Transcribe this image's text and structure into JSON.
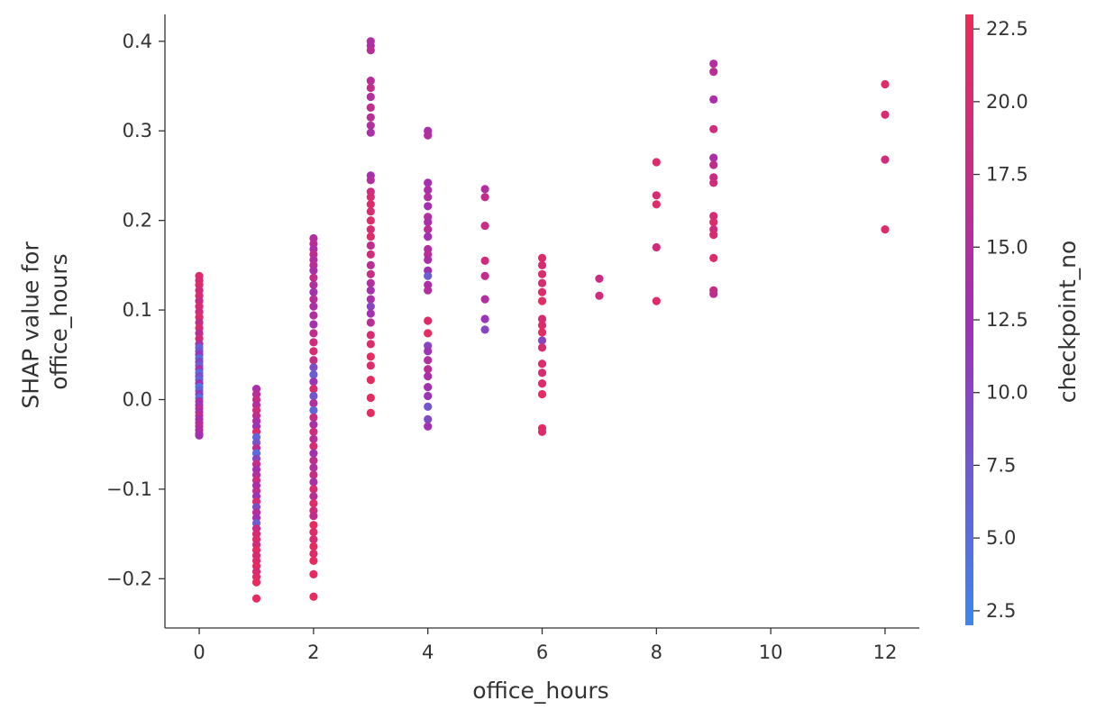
{
  "chart_data": {
    "type": "scatter",
    "title": "",
    "xlabel": "office_hours",
    "ylabel_lines": [
      "SHAP value for",
      "office_hours"
    ],
    "xlim": [
      -0.6,
      12.6
    ],
    "ylim": [
      -0.255,
      0.43
    ],
    "x_ticks": [
      0,
      2,
      4,
      6,
      8,
      10,
      12
    ],
    "x_tick_labels": [
      "0",
      "2",
      "4",
      "6",
      "8",
      "10",
      "12"
    ],
    "y_ticks": [
      -0.2,
      -0.1,
      0.0,
      0.1,
      0.2,
      0.3,
      0.4
    ],
    "y_tick_labels": [
      "−0.2",
      "−0.1",
      "0.0",
      "0.1",
      "0.2",
      "0.3",
      "0.4"
    ],
    "grid": false,
    "colorbar": {
      "label": "checkpoint_no",
      "range": [
        2,
        23
      ],
      "ticks": [
        2.5,
        5.0,
        7.5,
        10.0,
        12.5,
        15.0,
        17.5,
        20.0,
        22.5
      ],
      "tick_labels": [
        "2.5",
        "5.0",
        "7.5",
        "10.0",
        "12.5",
        "15.0",
        "17.5",
        "20.0",
        "22.5"
      ],
      "color_low": "#3b86f0",
      "color_mid": "#a12fb6",
      "color_high": "#ee2a57"
    },
    "points": [
      [
        0,
        0.138,
        21
      ],
      [
        0,
        0.133,
        20
      ],
      [
        0,
        0.128,
        21
      ],
      [
        0,
        0.122,
        19
      ],
      [
        0,
        0.116,
        20
      ],
      [
        0,
        0.11,
        18
      ],
      [
        0,
        0.104,
        20
      ],
      [
        0,
        0.098,
        19
      ],
      [
        0,
        0.092,
        21
      ],
      [
        0,
        0.086,
        17
      ],
      [
        0,
        0.08,
        20
      ],
      [
        0,
        0.074,
        16
      ],
      [
        0,
        0.068,
        19
      ],
      [
        0,
        0.062,
        15
      ],
      [
        0,
        0.058,
        6
      ],
      [
        0,
        0.054,
        8
      ],
      [
        0,
        0.05,
        12
      ],
      [
        0,
        0.046,
        5
      ],
      [
        0,
        0.042,
        10
      ],
      [
        0,
        0.038,
        7
      ],
      [
        0,
        0.034,
        14
      ],
      [
        0,
        0.03,
        5
      ],
      [
        0,
        0.026,
        9
      ],
      [
        0,
        0.022,
        6
      ],
      [
        0,
        0.018,
        13
      ],
      [
        0,
        0.014,
        4
      ],
      [
        0,
        0.01,
        7
      ],
      [
        0,
        0.006,
        11
      ],
      [
        0,
        0.002,
        5
      ],
      [
        0,
        -0.002,
        15
      ],
      [
        0,
        -0.006,
        12
      ],
      [
        0,
        -0.01,
        16
      ],
      [
        0,
        -0.014,
        14
      ],
      [
        0,
        -0.018,
        17
      ],
      [
        0,
        -0.022,
        13
      ],
      [
        0,
        -0.026,
        15
      ],
      [
        0,
        -0.03,
        16
      ],
      [
        0,
        -0.034,
        14
      ],
      [
        0,
        -0.038,
        15
      ],
      [
        0,
        -0.04,
        13
      ],
      [
        1,
        0.012,
        14
      ],
      [
        1,
        0.006,
        16
      ],
      [
        1,
        0.0,
        18
      ],
      [
        1,
        -0.006,
        15
      ],
      [
        1,
        -0.012,
        19
      ],
      [
        1,
        -0.018,
        17
      ],
      [
        1,
        -0.024,
        14
      ],
      [
        1,
        -0.03,
        12
      ],
      [
        1,
        -0.036,
        20
      ],
      [
        1,
        -0.042,
        6
      ],
      [
        1,
        -0.048,
        8
      ],
      [
        1,
        -0.054,
        16
      ],
      [
        1,
        -0.06,
        5
      ],
      [
        1,
        -0.066,
        10
      ],
      [
        1,
        -0.072,
        18
      ],
      [
        1,
        -0.078,
        13
      ],
      [
        1,
        -0.084,
        15
      ],
      [
        1,
        -0.09,
        19
      ],
      [
        1,
        -0.096,
        14
      ],
      [
        1,
        -0.102,
        17
      ],
      [
        1,
        -0.108,
        12
      ],
      [
        1,
        -0.114,
        20
      ],
      [
        1,
        -0.12,
        9
      ],
      [
        1,
        -0.126,
        16
      ],
      [
        1,
        -0.132,
        13
      ],
      [
        1,
        -0.138,
        7
      ],
      [
        1,
        -0.144,
        18
      ],
      [
        1,
        -0.15,
        20
      ],
      [
        1,
        -0.156,
        21
      ],
      [
        1,
        -0.162,
        19
      ],
      [
        1,
        -0.168,
        22
      ],
      [
        1,
        -0.174,
        20
      ],
      [
        1,
        -0.18,
        21
      ],
      [
        1,
        -0.186,
        22
      ],
      [
        1,
        -0.192,
        20
      ],
      [
        1,
        -0.198,
        21
      ],
      [
        1,
        -0.204,
        22
      ],
      [
        1,
        -0.222,
        22
      ],
      [
        2,
        0.18,
        15
      ],
      [
        2,
        0.174,
        16
      ],
      [
        2,
        0.168,
        14
      ],
      [
        2,
        0.162,
        17
      ],
      [
        2,
        0.156,
        15
      ],
      [
        2,
        0.15,
        16
      ],
      [
        2,
        0.144,
        14
      ],
      [
        2,
        0.136,
        17
      ],
      [
        2,
        0.128,
        15
      ],
      [
        2,
        0.12,
        13
      ],
      [
        2,
        0.112,
        16
      ],
      [
        2,
        0.104,
        14
      ],
      [
        2,
        0.094,
        15
      ],
      [
        2,
        0.084,
        13
      ],
      [
        2,
        0.074,
        17
      ],
      [
        2,
        0.064,
        19
      ],
      [
        2,
        0.054,
        20
      ],
      [
        2,
        0.044,
        18
      ],
      [
        2,
        0.036,
        9
      ],
      [
        2,
        0.028,
        7
      ],
      [
        2,
        0.02,
        12
      ],
      [
        2,
        0.012,
        20
      ],
      [
        2,
        0.004,
        8
      ],
      [
        2,
        -0.004,
        15
      ],
      [
        2,
        -0.012,
        6
      ],
      [
        2,
        -0.02,
        18
      ],
      [
        2,
        -0.028,
        14
      ],
      [
        2,
        -0.036,
        19
      ],
      [
        2,
        -0.044,
        16
      ],
      [
        2,
        -0.052,
        20
      ],
      [
        2,
        -0.06,
        13
      ],
      [
        2,
        -0.068,
        17
      ],
      [
        2,
        -0.076,
        15
      ],
      [
        2,
        -0.084,
        18
      ],
      [
        2,
        -0.092,
        14
      ],
      [
        2,
        -0.1,
        20
      ],
      [
        2,
        -0.108,
        16
      ],
      [
        2,
        -0.116,
        21
      ],
      [
        2,
        -0.124,
        19
      ],
      [
        2,
        -0.13,
        17
      ],
      [
        2,
        -0.14,
        22
      ],
      [
        2,
        -0.148,
        21
      ],
      [
        2,
        -0.156,
        20
      ],
      [
        2,
        -0.164,
        22
      ],
      [
        2,
        -0.172,
        21
      ],
      [
        2,
        -0.18,
        22
      ],
      [
        2,
        -0.195,
        22
      ],
      [
        2,
        -0.22,
        22
      ],
      [
        3,
        0.4,
        15
      ],
      [
        3,
        0.395,
        14
      ],
      [
        3,
        0.39,
        16
      ],
      [
        3,
        0.356,
        16
      ],
      [
        3,
        0.348,
        17
      ],
      [
        3,
        0.338,
        15
      ],
      [
        3,
        0.326,
        17
      ],
      [
        3,
        0.315,
        16
      ],
      [
        3,
        0.306,
        15
      ],
      [
        3,
        0.298,
        14
      ],
      [
        3,
        0.25,
        13
      ],
      [
        3,
        0.245,
        15
      ],
      [
        3,
        0.232,
        19
      ],
      [
        3,
        0.226,
        20
      ],
      [
        3,
        0.218,
        21
      ],
      [
        3,
        0.21,
        20
      ],
      [
        3,
        0.2,
        21
      ],
      [
        3,
        0.19,
        20
      ],
      [
        3,
        0.182,
        21
      ],
      [
        3,
        0.172,
        17
      ],
      [
        3,
        0.162,
        19
      ],
      [
        3,
        0.15,
        16
      ],
      [
        3,
        0.14,
        18
      ],
      [
        3,
        0.13,
        15
      ],
      [
        3,
        0.122,
        13
      ],
      [
        3,
        0.112,
        14
      ],
      [
        3,
        0.104,
        10
      ],
      [
        3,
        0.096,
        13
      ],
      [
        3,
        0.086,
        16
      ],
      [
        3,
        0.072,
        20
      ],
      [
        3,
        0.062,
        21
      ],
      [
        3,
        0.048,
        22
      ],
      [
        3,
        0.038,
        21
      ],
      [
        3,
        0.022,
        22
      ],
      [
        3,
        0.002,
        22
      ],
      [
        3,
        -0.015,
        22
      ],
      [
        4,
        0.3,
        14
      ],
      [
        4,
        0.295,
        15
      ],
      [
        4,
        0.242,
        13
      ],
      [
        4,
        0.234,
        14
      ],
      [
        4,
        0.226,
        15
      ],
      [
        4,
        0.216,
        13
      ],
      [
        4,
        0.204,
        15
      ],
      [
        4,
        0.198,
        14
      ],
      [
        4,
        0.19,
        16
      ],
      [
        4,
        0.182,
        13
      ],
      [
        4,
        0.168,
        15
      ],
      [
        4,
        0.162,
        16
      ],
      [
        4,
        0.156,
        14
      ],
      [
        4,
        0.144,
        13
      ],
      [
        4,
        0.138,
        7
      ],
      [
        4,
        0.128,
        14
      ],
      [
        4,
        0.122,
        15
      ],
      [
        4,
        0.088,
        21
      ],
      [
        4,
        0.074,
        22
      ],
      [
        4,
        0.06,
        10
      ],
      [
        4,
        0.054,
        12
      ],
      [
        4,
        0.044,
        15
      ],
      [
        4,
        0.034,
        16
      ],
      [
        4,
        0.026,
        14
      ],
      [
        4,
        0.014,
        13
      ],
      [
        4,
        0.004,
        12
      ],
      [
        4,
        -0.008,
        8
      ],
      [
        4,
        -0.022,
        9
      ],
      [
        4,
        -0.03,
        13
      ],
      [
        5,
        0.235,
        15
      ],
      [
        5,
        0.226,
        17
      ],
      [
        5,
        0.194,
        18
      ],
      [
        5,
        0.155,
        19
      ],
      [
        5,
        0.138,
        17
      ],
      [
        5,
        0.112,
        15
      ],
      [
        5,
        0.09,
        12
      ],
      [
        5,
        0.078,
        10
      ],
      [
        6,
        0.158,
        21
      ],
      [
        6,
        0.15,
        20
      ],
      [
        6,
        0.14,
        21
      ],
      [
        6,
        0.13,
        20
      ],
      [
        6,
        0.12,
        21
      ],
      [
        6,
        0.11,
        22
      ],
      [
        6,
        0.09,
        20
      ],
      [
        6,
        0.083,
        21
      ],
      [
        6,
        0.075,
        22
      ],
      [
        6,
        0.066,
        10
      ],
      [
        6,
        0.058,
        20
      ],
      [
        6,
        0.04,
        21
      ],
      [
        6,
        0.03,
        20
      ],
      [
        6,
        0.018,
        21
      ],
      [
        6,
        0.006,
        22
      ],
      [
        6,
        -0.032,
        22
      ],
      [
        6,
        -0.036,
        21
      ],
      [
        7,
        0.135,
        18
      ],
      [
        7,
        0.116,
        19
      ],
      [
        8,
        0.265,
        21
      ],
      [
        8,
        0.228,
        20
      ],
      [
        8,
        0.218,
        21
      ],
      [
        8,
        0.17,
        19
      ],
      [
        8,
        0.11,
        21
      ],
      [
        9,
        0.375,
        15
      ],
      [
        9,
        0.366,
        16
      ],
      [
        9,
        0.335,
        14
      ],
      [
        9,
        0.302,
        19
      ],
      [
        9,
        0.27,
        14
      ],
      [
        9,
        0.262,
        17
      ],
      [
        9,
        0.248,
        18
      ],
      [
        9,
        0.242,
        19
      ],
      [
        9,
        0.205,
        20
      ],
      [
        9,
        0.198,
        21
      ],
      [
        9,
        0.19,
        19
      ],
      [
        9,
        0.184,
        20
      ],
      [
        9,
        0.158,
        21
      ],
      [
        9,
        0.122,
        18
      ],
      [
        9,
        0.118,
        17
      ],
      [
        12,
        0.352,
        21
      ],
      [
        12,
        0.318,
        20
      ],
      [
        12,
        0.268,
        19
      ],
      [
        12,
        0.19,
        21
      ]
    ]
  }
}
